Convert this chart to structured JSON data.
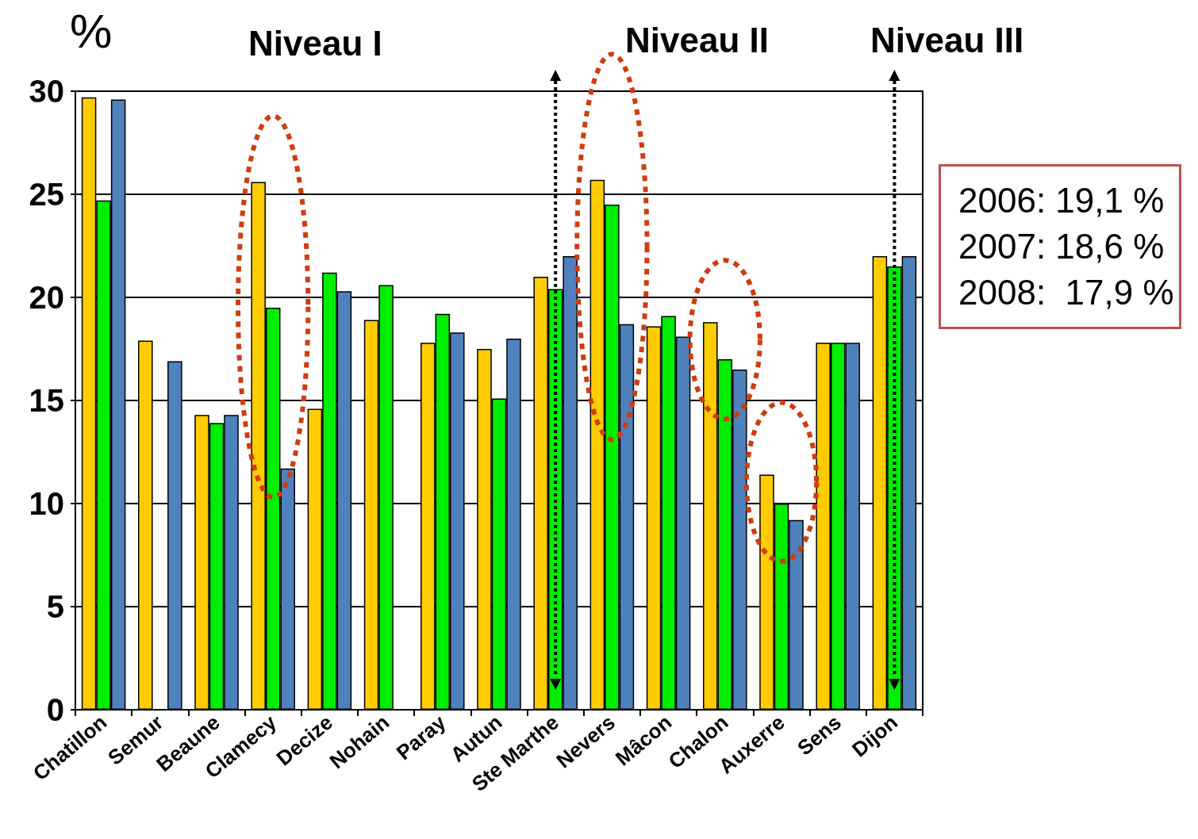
{
  "chart_data": {
    "type": "bar",
    "ylabel": "%",
    "categories": [
      "Chatillon",
      "Semur",
      "Beaune",
      "Clamecy",
      "Decize",
      "Nohain",
      "Paray",
      "Autun",
      "Ste Marthe",
      "Nevers",
      "Mâcon",
      "Chalon",
      "Auxerre",
      "Sens",
      "Dijon"
    ],
    "series": [
      {
        "color": "#ffcc00",
        "values": [
          29.7,
          17.9,
          14.3,
          25.6,
          14.6,
          18.9,
          17.8,
          17.5,
          21.0,
          25.7,
          18.6,
          18.8,
          11.4,
          17.8,
          22.0
        ]
      },
      {
        "color": "#00ee00",
        "values": [
          24.7,
          null,
          13.9,
          19.5,
          21.2,
          20.6,
          19.2,
          15.1,
          20.4,
          24.5,
          19.1,
          17.0,
          10.0,
          17.8,
          21.5
        ]
      },
      {
        "color": "#4f81bd",
        "values": [
          29.6,
          16.9,
          14.3,
          11.7,
          20.3,
          null,
          18.3,
          18.0,
          22.0,
          18.7,
          18.1,
          16.5,
          9.2,
          17.8,
          22.0
        ]
      }
    ],
    "ylim": [
      0,
      30
    ],
    "yticks": [
      0,
      5,
      10,
      15,
      20,
      25,
      30
    ],
    "grid": "y",
    "annotations": [
      "Niveau I",
      "Niveau II",
      "Niveau III",
      "2006: 19,1 %",
      "2007: 18,6 %",
      "2008:  17,9 %"
    ]
  }
}
